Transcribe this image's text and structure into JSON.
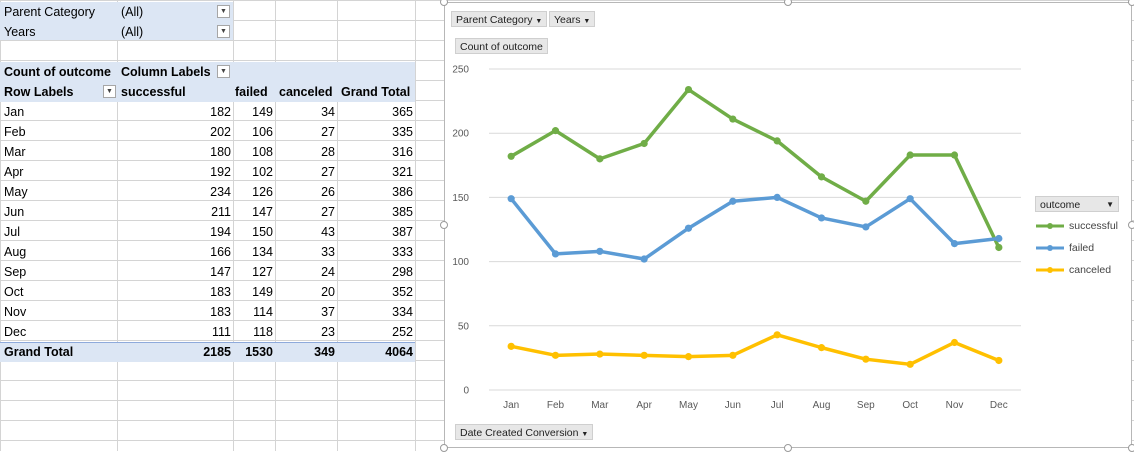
{
  "filters": [
    {
      "label": "Parent Category",
      "value": "(All)"
    },
    {
      "label": "Years",
      "value": "(All)"
    }
  ],
  "pivot": {
    "corner": "Count of outcome",
    "column_labels": "Column Labels",
    "row_labels": "Row Labels",
    "col_headers": [
      "successful",
      "failed",
      "canceled",
      "Grand Total"
    ],
    "rows": [
      {
        "label": "Jan",
        "successful": "182",
        "failed": "149",
        "canceled": "34",
        "total": "365"
      },
      {
        "label": "Feb",
        "successful": "202",
        "failed": "106",
        "canceled": "27",
        "total": "335"
      },
      {
        "label": "Mar",
        "successful": "180",
        "failed": "108",
        "canceled": "28",
        "total": "316"
      },
      {
        "label": "Apr",
        "successful": "192",
        "failed": "102",
        "canceled": "27",
        "total": "321"
      },
      {
        "label": "May",
        "successful": "234",
        "failed": "126",
        "canceled": "26",
        "total": "386"
      },
      {
        "label": "Jun",
        "successful": "211",
        "failed": "147",
        "canceled": "27",
        "total": "385"
      },
      {
        "label": "Jul",
        "successful": "194",
        "failed": "150",
        "canceled": "43",
        "total": "387"
      },
      {
        "label": "Aug",
        "successful": "166",
        "failed": "134",
        "canceled": "33",
        "total": "333"
      },
      {
        "label": "Sep",
        "successful": "147",
        "failed": "127",
        "canceled": "24",
        "total": "298"
      },
      {
        "label": "Oct",
        "successful": "183",
        "failed": "149",
        "canceled": "20",
        "total": "352"
      },
      {
        "label": "Nov",
        "successful": "183",
        "failed": "114",
        "canceled": "37",
        "total": "334"
      },
      {
        "label": "Dec",
        "successful": "111",
        "failed": "118",
        "canceled": "23",
        "total": "252"
      }
    ],
    "grand": {
      "label": "Grand Total",
      "successful": "2185",
      "failed": "1530",
      "canceled": "349",
      "total": "4064"
    }
  },
  "chart_buttons": {
    "parent_category": "Parent Category",
    "years": "Years",
    "value_field": "Count of outcome",
    "axis_field": "Date Created Conversion"
  },
  "chart_data": {
    "type": "line",
    "categories": [
      "Jan",
      "Feb",
      "Mar",
      "Apr",
      "May",
      "Jun",
      "Jul",
      "Aug",
      "Sep",
      "Oct",
      "Nov",
      "Dec"
    ],
    "series": [
      {
        "name": "successful",
        "color": "#70ad47",
        "values": [
          182,
          202,
          180,
          192,
          234,
          211,
          194,
          166,
          147,
          183,
          183,
          111
        ]
      },
      {
        "name": "failed",
        "color": "#5b9bd5",
        "values": [
          149,
          106,
          108,
          102,
          126,
          147,
          150,
          134,
          127,
          149,
          114,
          118
        ]
      },
      {
        "name": "canceled",
        "color": "#ffc000",
        "values": [
          34,
          27,
          28,
          27,
          26,
          27,
          43,
          33,
          24,
          20,
          37,
          23
        ]
      }
    ],
    "ylim": [
      0,
      250
    ],
    "yticks": [
      "0",
      "50",
      "100",
      "150",
      "200",
      "250"
    ],
    "legend_title": "outcome",
    "legend_position": "right",
    "grid": true
  },
  "icons": {
    "dropdown": "chevron-down-icon",
    "filter": "filter-icon"
  }
}
